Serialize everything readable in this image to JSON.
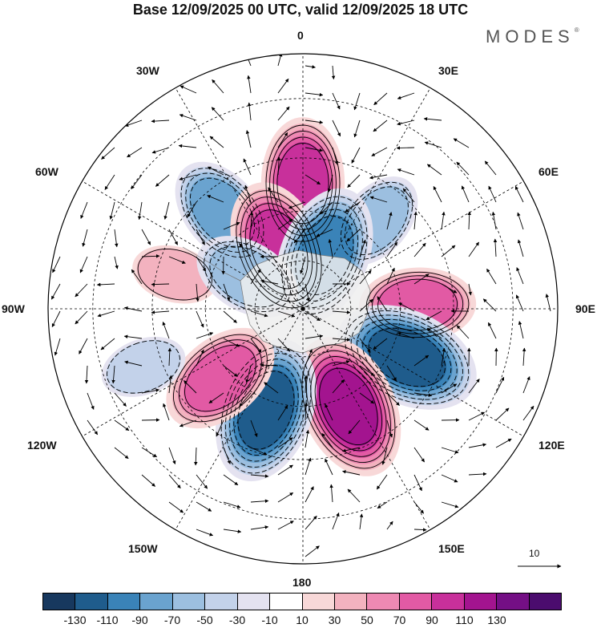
{
  "title": "Base 12/09/2025 00 UTC, valid 12/09/2025 18 UTC",
  "brand": "MODES",
  "brand_mark": "®",
  "longitude_labels": {
    "l0": "0",
    "l30e": "30E",
    "l60e": "60E",
    "l90e": "90E",
    "l120e": "120E",
    "l150e": "150E",
    "l180": "180",
    "l150w": "150W",
    "l120w": "120W",
    "l90w": "90W",
    "l60w": "60W",
    "l30w": "30W"
  },
  "vector_reference": "10",
  "colorbar": {
    "colors": [
      "#17385e",
      "#1f5c8c",
      "#3a83b8",
      "#6aa3cf",
      "#9cbfe0",
      "#c3d2ea",
      "#e4e2f0",
      "#ffffff",
      "#f8d8d8",
      "#f3b2bf",
      "#ee89b3",
      "#e25aa4",
      "#c8309b",
      "#a3148f",
      "#740f85",
      "#4b0c6e"
    ],
    "ticks": [
      "-130",
      "-110",
      "-90",
      "-70",
      "-50",
      "-30",
      "-10",
      "10",
      "30",
      "50",
      "70",
      "90",
      "110",
      "130"
    ]
  },
  "anomaly_centers": [
    {
      "lon": 0,
      "lat": -52,
      "value": 90
    },
    {
      "lon": -40,
      "lat": -52,
      "value": -70
    },
    {
      "lon": 40,
      "lat": -55,
      "value": -50
    },
    {
      "lon": -75,
      "lat": -50,
      "value": 30
    },
    {
      "lon": -22,
      "lat": -70,
      "value": 100
    },
    {
      "lon": 22,
      "lat": -72,
      "value": -100
    },
    {
      "lon": -60,
      "lat": -70,
      "value": -60
    },
    {
      "lon": 88,
      "lat": -55,
      "value": 70
    },
    {
      "lon": 115,
      "lat": -55,
      "value": -110
    },
    {
      "lon": 155,
      "lat": -57,
      "value": 110
    },
    {
      "lon": -160,
      "lat": -57,
      "value": -110
    },
    {
      "lon": -130,
      "lat": -57,
      "value": 80
    },
    {
      "lon": -110,
      "lat": -40,
      "value": -30
    }
  ]
}
